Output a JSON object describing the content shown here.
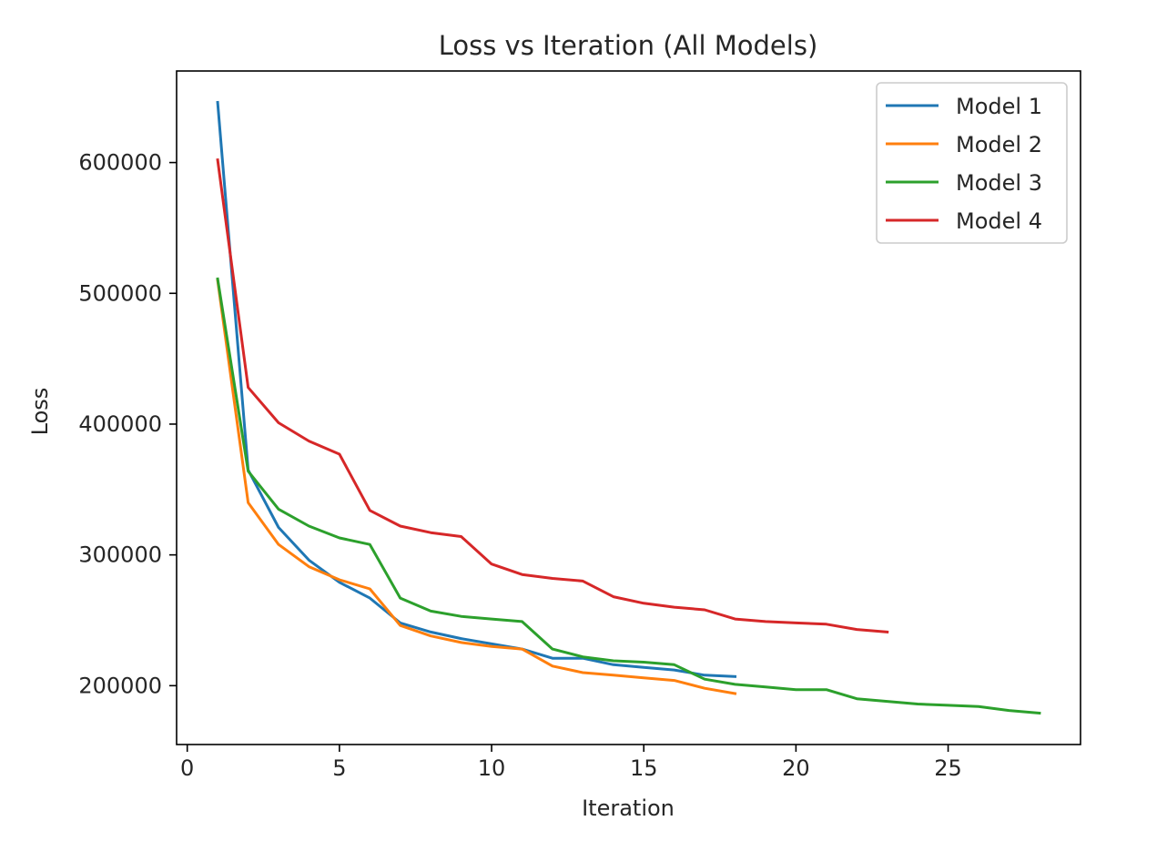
{
  "chart_data": {
    "type": "line",
    "title": "Loss vs Iteration (All Models)",
    "xlabel": "Iteration",
    "ylabel": "Loss",
    "xlim": [
      -0.35,
      29.35
    ],
    "ylim": [
      155000,
      670000
    ],
    "xticks": [
      0,
      5,
      10,
      15,
      20,
      25
    ],
    "yticks": [
      200000,
      300000,
      400000,
      500000,
      600000
    ],
    "xtick_labels": [
      "0",
      "5",
      "10",
      "15",
      "20",
      "25"
    ],
    "ytick_labels": [
      "200000",
      "300000",
      "400000",
      "500000",
      "600000"
    ],
    "grid": false,
    "legend_position": "top-right",
    "series": [
      {
        "name": "Model 1",
        "color": "#1f77b4",
        "x": [
          1,
          2,
          3,
          4,
          5,
          6,
          7,
          8,
          9,
          10,
          11,
          12,
          13,
          14,
          15,
          16,
          17,
          18
        ],
        "y": [
          646000,
          365000,
          321000,
          296000,
          279000,
          267000,
          248000,
          241000,
          236000,
          232000,
          228000,
          221000,
          221000,
          216000,
          214000,
          212000,
          208000,
          207000
        ]
      },
      {
        "name": "Model 2",
        "color": "#ff7f0e",
        "x": [
          1,
          2,
          3,
          4,
          5,
          6,
          7,
          8,
          9,
          10,
          11,
          12,
          13,
          14,
          15,
          16,
          17,
          18
        ],
        "y": [
          510000,
          340000,
          308000,
          291000,
          281000,
          274000,
          246000,
          238000,
          233000,
          230000,
          228000,
          215000,
          210000,
          208000,
          206000,
          204000,
          198000,
          194000
        ]
      },
      {
        "name": "Model 3",
        "color": "#2ca02c",
        "x": [
          1,
          2,
          3,
          4,
          5,
          6,
          7,
          8,
          9,
          10,
          11,
          12,
          13,
          14,
          15,
          16,
          17,
          18,
          19,
          20,
          21,
          22,
          23,
          24,
          25,
          26,
          27,
          28
        ],
        "y": [
          511000,
          364000,
          335000,
          322000,
          313000,
          308000,
          267000,
          257000,
          253000,
          251000,
          249000,
          228000,
          222000,
          219000,
          218000,
          216000,
          205000,
          201000,
          199000,
          197000,
          197000,
          190000,
          188000,
          186000,
          185000,
          184000,
          181000,
          179000
        ]
      },
      {
        "name": "Model 4",
        "color": "#d62728",
        "x": [
          1,
          2,
          3,
          4,
          5,
          6,
          7,
          8,
          9,
          10,
          11,
          12,
          13,
          14,
          15,
          16,
          17,
          18,
          19,
          20,
          21,
          22,
          23
        ],
        "y": [
          602000,
          428000,
          401000,
          387000,
          377000,
          334000,
          322000,
          317000,
          314000,
          293000,
          285000,
          282000,
          280000,
          268000,
          263000,
          260000,
          258000,
          251000,
          249000,
          248000,
          247000,
          243000,
          241000
        ]
      }
    ]
  }
}
